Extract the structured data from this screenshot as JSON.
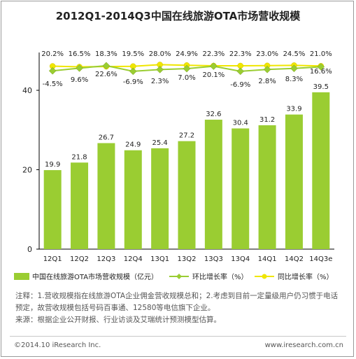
{
  "chart_data": {
    "type": "bar",
    "title": "2012Q1-2014Q3中国在线旅游OTA市场营收规模",
    "categories": [
      "12Q1",
      "12Q2",
      "12Q3",
      "12Q4",
      "13Q1",
      "13Q2",
      "13Q3",
      "13Q4",
      "14Q1",
      "14Q2",
      "14Q3e"
    ],
    "yticks": [
      0,
      20,
      40
    ],
    "ylim": [
      0,
      46
    ],
    "series": [
      {
        "name": "中国在线旅游OTA市场营收规模（亿元）",
        "type": "bar",
        "color": "#9acd32",
        "values": [
          19.9,
          21.8,
          26.7,
          24.9,
          25.4,
          27.2,
          32.6,
          30.4,
          31.2,
          33.9,
          39.5
        ],
        "labels": [
          "19.9",
          "21.8",
          "26.7",
          "24.9",
          "25.4",
          "27.2",
          "32.6",
          "30.4",
          "31.2",
          "33.9",
          "39.5"
        ]
      },
      {
        "name": "环比增长率（%）",
        "type": "line",
        "color": "#9acd32",
        "values": [
          -4.5,
          9.6,
          22.6,
          -6.9,
          2.3,
          7.0,
          20.1,
          -6.9,
          2.8,
          8.3,
          16.6
        ],
        "labels": [
          "-4.5%",
          "9.6%",
          "22.6%",
          "-6.9%",
          "2.3%",
          "7.0%",
          "20.1%",
          "-6.9%",
          "2.8%",
          "8.3%",
          "16.6%"
        ]
      },
      {
        "name": "同比增长率（%）",
        "type": "line",
        "color": "#f0e600",
        "values": [
          20.2,
          16.5,
          18.3,
          19.5,
          28.0,
          24.9,
          22.3,
          22.3,
          23.0,
          24.5,
          21.0
        ],
        "labels": [
          "20.2%",
          "16.5%",
          "18.3%",
          "19.5%",
          "28.0%",
          "24.9%",
          "22.3%",
          "22.3%",
          "23.0%",
          "24.5%",
          "21.0%"
        ]
      }
    ]
  },
  "notes": {
    "line1": "注释：1.营收规模指在线旅游OTA企业佣金营收规模总和；2.考虑到目前一定量级用户仍习惯于电话",
    "line2": "预定，故营收规模包括号码百事通、12580等电信旗下企业。",
    "line3": "来源：根据企业公开财报、行业访谈及艾瑞统计预测模型估算。"
  },
  "footer": {
    "copyright": "©2014.10 iResearch Inc.",
    "site": "www.iresearch.com.cn"
  }
}
